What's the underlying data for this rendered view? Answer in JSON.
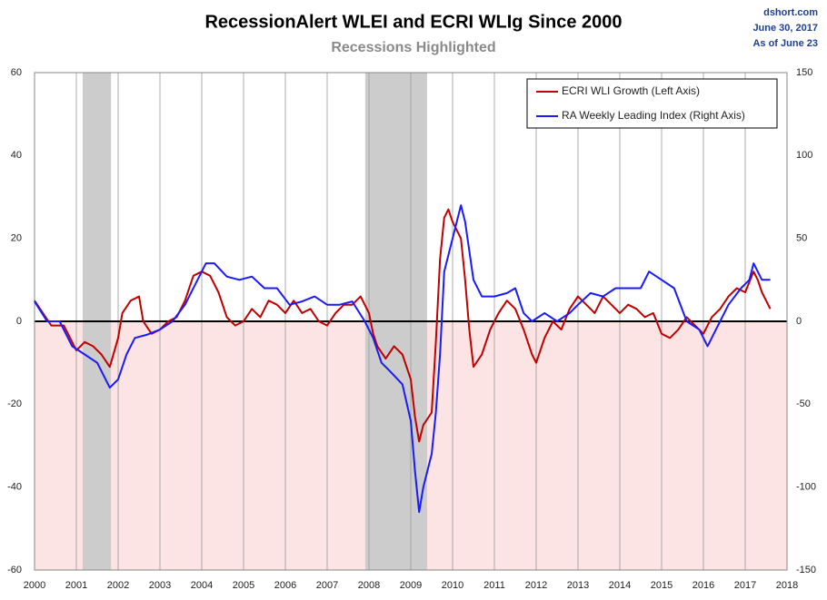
{
  "chart_data": {
    "type": "line",
    "title": "RecessionAlert WLEI and ECRI WLIg Since 2000",
    "subtitle": "Recessions Highlighted",
    "source": [
      "dshort.com",
      "June 30, 2017",
      "As of June 23"
    ],
    "xlim": [
      2000,
      2018
    ],
    "xticks": [
      2000,
      2001,
      2002,
      2003,
      2004,
      2005,
      2006,
      2007,
      2008,
      2009,
      2010,
      2011,
      2012,
      2013,
      2014,
      2015,
      2016,
      2017,
      2018
    ],
    "ylim": [
      -60,
      60
    ],
    "yticks": [
      -60,
      -40,
      -20,
      0,
      20,
      40,
      60
    ],
    "y2lim": [
      -150,
      150
    ],
    "y2ticks": [
      -150,
      -100,
      -50,
      0,
      50,
      100,
      150
    ],
    "grid": true,
    "negative_fill": "#fde4e4",
    "negative_tick_color": "#c00000",
    "recession_color": "#cccccc",
    "recessions": [
      [
        2001.15,
        2001.83
      ],
      [
        2007.91,
        2009.39
      ]
    ],
    "legend": "top-right",
    "series": [
      {
        "name": "ECRI WLI Growth (Left Axis)",
        "color": "#c00000",
        "axis": "y",
        "x": [
          2000.0,
          2000.2,
          2000.4,
          2000.7,
          2001.0,
          2001.2,
          2001.4,
          2001.6,
          2001.8,
          2002.0,
          2002.1,
          2002.3,
          2002.5,
          2002.6,
          2002.8,
          2003.0,
          2003.2,
          2003.4,
          2003.6,
          2003.8,
          2004.0,
          2004.2,
          2004.4,
          2004.6,
          2004.8,
          2005.0,
          2005.2,
          2005.4,
          2005.6,
          2005.8,
          2006.0,
          2006.2,
          2006.4,
          2006.6,
          2006.8,
          2007.0,
          2007.2,
          2007.4,
          2007.6,
          2007.8,
          2008.0,
          2008.1,
          2008.2,
          2008.4,
          2008.6,
          2008.8,
          2009.0,
          2009.1,
          2009.2,
          2009.3,
          2009.5,
          2009.6,
          2009.7,
          2009.8,
          2009.9,
          2010.0,
          2010.2,
          2010.3,
          2010.4,
          2010.5,
          2010.7,
          2010.9,
          2011.1,
          2011.3,
          2011.5,
          2011.7,
          2011.9,
          2012.0,
          2012.2,
          2012.4,
          2012.6,
          2012.8,
          2013.0,
          2013.2,
          2013.4,
          2013.6,
          2013.8,
          2014.0,
          2014.2,
          2014.4,
          2014.6,
          2014.8,
          2015.0,
          2015.2,
          2015.4,
          2015.6,
          2015.8,
          2016.0,
          2016.2,
          2016.4,
          2016.6,
          2016.8,
          2017.0,
          2017.2,
          2017.3,
          2017.4,
          2017.5,
          2017.6
        ],
        "values": [
          5,
          2,
          -1,
          -1,
          -7,
          -5,
          -6,
          -8,
          -11,
          -4,
          2,
          5,
          6,
          0,
          -3,
          -2,
          0,
          1,
          5,
          11,
          12,
          11,
          7,
          1,
          -1,
          0,
          3,
          1,
          5,
          4,
          2,
          5,
          2,
          3,
          0,
          -1,
          2,
          4,
          4,
          6,
          2,
          -3,
          -6,
          -9,
          -6,
          -8,
          -14,
          -23,
          -29,
          -25,
          -22,
          -5,
          15,
          25,
          27,
          24,
          20,
          10,
          -2,
          -11,
          -8,
          -2,
          2,
          5,
          3,
          -2,
          -8,
          -10,
          -4,
          0,
          -2,
          3,
          6,
          4,
          2,
          6,
          4,
          2,
          4,
          3,
          1,
          2,
          -3,
          -4,
          -2,
          1,
          -1,
          -3,
          1,
          3,
          6,
          8,
          7,
          12,
          10,
          7,
          5,
          3
        ]
      },
      {
        "name": "RA Weekly Leading Index (Right Axis)",
        "color": "#1a1aff",
        "axis": "y2",
        "x": [
          2000.0,
          2000.3,
          2000.6,
          2000.9,
          2001.2,
          2001.5,
          2001.8,
          2002.0,
          2002.2,
          2002.4,
          2002.7,
          2003.0,
          2003.3,
          2003.6,
          2003.9,
          2004.1,
          2004.3,
          2004.6,
          2004.9,
          2005.2,
          2005.5,
          2005.8,
          2006.1,
          2006.4,
          2006.7,
          2007.0,
          2007.3,
          2007.6,
          2007.9,
          2008.1,
          2008.3,
          2008.5,
          2008.8,
          2009.0,
          2009.1,
          2009.2,
          2009.3,
          2009.5,
          2009.6,
          2009.7,
          2009.8,
          2010.0,
          2010.2,
          2010.3,
          2010.5,
          2010.7,
          2011.0,
          2011.3,
          2011.5,
          2011.7,
          2011.9,
          2012.2,
          2012.5,
          2012.8,
          2013.0,
          2013.3,
          2013.6,
          2013.9,
          2014.2,
          2014.5,
          2014.7,
          2015.0,
          2015.3,
          2015.6,
          2015.9,
          2016.1,
          2016.3,
          2016.6,
          2016.9,
          2017.1,
          2017.2,
          2017.4,
          2017.6
        ],
        "values": [
          12,
          0,
          0,
          -15,
          -20,
          -25,
          -40,
          -35,
          -20,
          -10,
          -8,
          -5,
          0,
          10,
          25,
          35,
          35,
          27,
          25,
          27,
          20,
          20,
          10,
          12,
          15,
          10,
          10,
          12,
          0,
          -10,
          -25,
          -30,
          -38,
          -60,
          -90,
          -115,
          -100,
          -80,
          -55,
          -20,
          30,
          50,
          70,
          60,
          25,
          15,
          15,
          17,
          20,
          5,
          0,
          5,
          0,
          5,
          10,
          17,
          15,
          20,
          20,
          20,
          30,
          25,
          20,
          0,
          -5,
          -15,
          -5,
          10,
          20,
          25,
          35,
          25,
          25
        ]
      }
    ]
  }
}
